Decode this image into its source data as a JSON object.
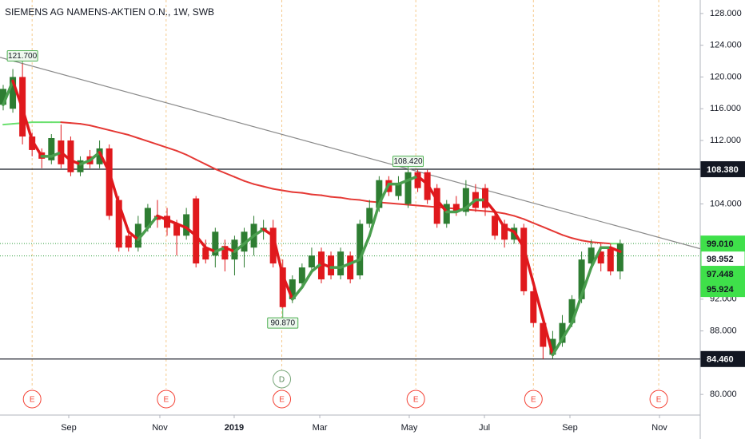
{
  "chart_data": {
    "type": "candlestick",
    "title": "SIEMENS AG NAMENS-AKTIEN O.N., 1W, SWB",
    "open": [
      116.5,
      116,
      120,
      112.5,
      110.5,
      109.5,
      112,
      112,
      108,
      110,
      109,
      111,
      104.5,
      100,
      98.5,
      101,
      102.5,
      102.5,
      101.5,
      100,
      104.7,
      98.5,
      97.5,
      98.7,
      97,
      98,
      98.5,
      100.5,
      101,
      96,
      92,
      94,
      96,
      98,
      97.5,
      95,
      97.5,
      95,
      101.5,
      103.5,
      107,
      105,
      104,
      108,
      108,
      106,
      101.5,
      104,
      103,
      105.5,
      106,
      102.5,
      101.5,
      99.5,
      101,
      93,
      89,
      85,
      86.5,
      89,
      92,
      96.5,
      98,
      98.5,
      95.5
    ],
    "high": [
      119,
      121,
      121.7,
      113,
      111,
      112.8,
      114,
      112.5,
      110,
      110.8,
      112,
      111.5,
      105,
      101,
      102.5,
      104,
      104.5,
      103.5,
      102,
      103.5,
      105,
      99.5,
      101,
      99.5,
      100,
      101,
      102.5,
      102,
      102,
      97,
      95,
      96.5,
      98.5,
      98.5,
      98,
      98.5,
      98,
      102,
      104.5,
      107.5,
      107.5,
      107.5,
      108.42,
      108.3,
      108.3,
      106.5,
      104.5,
      105,
      107,
      106.5,
      106.5,
      103,
      102,
      101.5,
      101.5,
      93.5,
      89.5,
      88,
      90,
      92.5,
      98,
      99.5,
      99,
      99,
      99.5
    ],
    "low": [
      115.8,
      115.5,
      111.5,
      110,
      108.5,
      109,
      108.5,
      107.5,
      107.5,
      108.5,
      108.5,
      102,
      98,
      98,
      98,
      100.5,
      101,
      100,
      97.5,
      99.5,
      96,
      96.5,
      96,
      95.5,
      95,
      96,
      97.5,
      99.5,
      96,
      90.87,
      91.5,
      93.5,
      95.5,
      94,
      94.5,
      94.5,
      94,
      94.5,
      101,
      103,
      105,
      104.5,
      103.5,
      105.5,
      104,
      101,
      101,
      102.5,
      102.5,
      103,
      102.5,
      99.5,
      98.5,
      99,
      92.5,
      88.5,
      84.46,
      84.5,
      86,
      88.5,
      91.5,
      96,
      95.5,
      95,
      94.5
    ],
    "close": [
      118.5,
      120,
      112.5,
      110.8,
      109.7,
      112.3,
      109,
      108,
      109.5,
      109,
      111,
      102.5,
      98.5,
      98.5,
      101.5,
      103.5,
      102,
      101,
      100,
      102.7,
      96.5,
      97,
      100.5,
      97,
      99.5,
      100.5,
      101.5,
      101,
      96.5,
      91,
      94.5,
      96,
      97.5,
      94.5,
      95,
      98,
      94.5,
      101.5,
      103.5,
      107,
      105.5,
      106.5,
      108,
      106,
      104.5,
      101.5,
      104,
      103,
      106,
      103.5,
      103.5,
      100,
      99.5,
      101,
      93,
      89,
      86,
      87,
      89,
      92,
      97,
      98.5,
      96.5,
      95.5,
      99
    ],
    "up_color": "#2e7d32",
    "down_color": "#e0191d",
    "fast": {
      "values": [
        116.5,
        119.5,
        116,
        112,
        110,
        110,
        110.5,
        109.5,
        109,
        109.5,
        110.5,
        108,
        104,
        100.5,
        99.5,
        101,
        102.5,
        102,
        101.5,
        101,
        100,
        98.5,
        98,
        98.5,
        98,
        99,
        100,
        100.8,
        100,
        95,
        92,
        93.5,
        95.5,
        96.5,
        96,
        96,
        96.5,
        97,
        100,
        104,
        106.5,
        106.5,
        107,
        107.5,
        106.5,
        104.5,
        103,
        103,
        103.5,
        104.5,
        104.5,
        103,
        101,
        100.5,
        98.5,
        94,
        89.5,
        85,
        87,
        89,
        92.5,
        96,
        98.5,
        98.5,
        98
      ],
      "up_color": "#4a9e4e",
      "down_color": "#e0191d"
    },
    "slow": {
      "values": [
        114,
        114.1,
        114.2,
        114.3,
        114.3,
        114.3,
        114.3,
        114.2,
        114.1,
        113.9,
        113.6,
        113.3,
        113,
        112.7,
        112.3,
        111.9,
        111.5,
        111.1,
        110.7,
        110.2,
        109.6,
        109,
        108.4,
        107.9,
        107.4,
        106.9,
        106.5,
        106.2,
        105.9,
        105.7,
        105.5,
        105.4,
        105.2,
        105.1,
        104.9,
        104.8,
        104.6,
        104.5,
        104.3,
        104.2,
        104.1,
        104,
        103.9,
        103.8,
        103.7,
        103.6,
        103.5,
        103.4,
        103.3,
        103.2,
        103.1,
        103,
        102.8,
        102.5,
        102.1,
        101.6,
        101.1,
        100.6,
        100.1,
        99.7,
        99.4,
        99.2,
        99.1,
        99.0,
        99.0
      ],
      "up_color": "#6be06f",
      "down_color": "#e53935"
    },
    "ylim": [
      77.4,
      129.7
    ],
    "yticks": [
      {
        "value": 80,
        "label": "80.000"
      },
      {
        "value": 88,
        "label": "88.000"
      },
      {
        "value": 92,
        "label": "92.000"
      },
      {
        "value": 104,
        "label": "104.000"
      },
      {
        "value": 112,
        "label": "112.000"
      },
      {
        "value": 116,
        "label": "116.000"
      },
      {
        "value": 120,
        "label": "120.000"
      },
      {
        "value": 124,
        "label": "124.000"
      },
      {
        "value": 128,
        "label": "128.000"
      }
    ],
    "xticks": [
      {
        "value": 6.8,
        "label": "Sep"
      },
      {
        "value": 16.25,
        "label": "Nov"
      },
      {
        "value": 23.96,
        "label": "2019"
      },
      {
        "value": 32.84,
        "label": "Mar"
      },
      {
        "value": 42.12,
        "label": "May"
      },
      {
        "value": 49.92,
        "label": "Jul"
      },
      {
        "value": 58.79,
        "label": "Sep"
      },
      {
        "value": 68.08,
        "label": "Nov"
      }
    ],
    "trendline": {
      "points": [
        [
          2,
          121.7
        ],
        [
          42,
          108.42
        ]
      ],
      "color": "#8a8a8a"
    },
    "levels": [
      {
        "value": 108.38,
        "style": "solid",
        "color": "#131722"
      },
      {
        "value": 84.46,
        "style": "solid",
        "color": "#131722"
      },
      {
        "value": 99.01,
        "style": "dotted",
        "color": "#2e9e3a"
      },
      {
        "value": 97.448,
        "style": "dotted",
        "color": "#2e9e3a"
      }
    ],
    "price_labels": [
      {
        "value": 108.38,
        "label": "108.380",
        "bg": "#131722",
        "fg": "#ffffff"
      },
      {
        "value": 99.01,
        "label": "99.010",
        "bg": "#3fe04a",
        "fg": "#131722"
      },
      {
        "value": 98.952,
        "label": "98.952",
        "bg": "#ffffff",
        "fg": "#131722"
      },
      {
        "value": 97.448,
        "label": "97.448",
        "bg": "#3fe04a",
        "fg": "#131722"
      },
      {
        "value": 95.924,
        "label": "95.924",
        "bg": "#3fe04a",
        "fg": "#131722"
      },
      {
        "value": 84.46,
        "label": "84.460",
        "bg": "#131722",
        "fg": "#ffffff"
      }
    ],
    "annotations": [
      {
        "at": 2,
        "value": 121.7,
        "label": "121.700",
        "position": "above"
      },
      {
        "at": 29,
        "value": 90.87,
        "label": "90.870",
        "position": "below"
      },
      {
        "at": 42,
        "value": 108.42,
        "label": "108.420",
        "position": "above"
      }
    ],
    "events": [
      {
        "at": 3,
        "label": "E",
        "kind": "earnings"
      },
      {
        "at": 16.9,
        "label": "E",
        "kind": "earnings"
      },
      {
        "at": 28.9,
        "label": "E",
        "kind": "earnings"
      },
      {
        "at": 42.8,
        "label": "E",
        "kind": "earnings"
      },
      {
        "at": 55,
        "label": "E",
        "kind": "earnings"
      },
      {
        "at": 68,
        "label": "E",
        "kind": "earnings"
      },
      {
        "at": 28.9,
        "label": "D",
        "kind": "dividend"
      }
    ]
  }
}
